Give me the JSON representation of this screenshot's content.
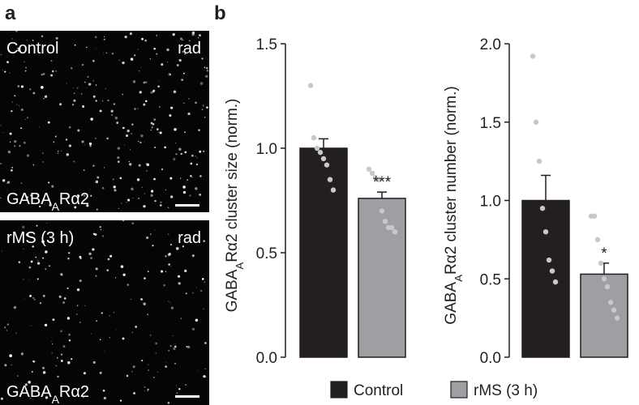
{
  "panel_a": {
    "label": "a",
    "images": [
      {
        "condition": "Control",
        "region": "rad",
        "stain": [
          "GABA",
          "A",
          "Rα2"
        ]
      },
      {
        "condition": "rMS (3 h)",
        "region": "rad",
        "stain": [
          "GABA",
          "A",
          "Rα2"
        ]
      }
    ]
  },
  "panel_b": {
    "label": "b"
  },
  "legend": [
    {
      "name": "Control",
      "color": "#231f20"
    },
    {
      "name": "rMS (3 h)",
      "color": "#9d9fa2"
    }
  ],
  "chart_data": [
    {
      "type": "bar",
      "ylabel": [
        "GABA",
        "A",
        "Rα2 cluster size (norm.)"
      ],
      "values": [
        1.0,
        0.76
      ],
      "errors": [
        0.045,
        0.03
      ],
      "annotations": [
        null,
        "***"
      ],
      "points": [
        [
          1.3,
          1.05,
          1.0,
          0.98,
          0.95,
          0.92,
          0.85,
          0.8
        ],
        [
          0.9,
          0.88,
          0.86,
          0.85,
          0.7,
          0.65,
          0.62,
          0.62,
          0.6
        ]
      ],
      "point_color": "#c8c8c8",
      "ylim": [
        0,
        1.5
      ],
      "yticks": [
        {
          "value": 0,
          "label": "0.0"
        },
        {
          "value": 0.5,
          "label": "0.5"
        },
        {
          "value": 1,
          "label": "1.0"
        },
        {
          "value": 1.5,
          "label": "1.5"
        }
      ]
    },
    {
      "type": "bar",
      "ylabel": [
        "GABA",
        "A",
        "Rα2 cluster number (norm.)"
      ],
      "values": [
        1.0,
        0.53
      ],
      "errors": [
        0.16,
        0.07
      ],
      "annotations": [
        null,
        "*"
      ],
      "points": [
        [
          1.92,
          1.5,
          1.25,
          0.95,
          0.8,
          0.62,
          0.55,
          0.48
        ],
        [
          0.9,
          0.9,
          0.75,
          0.6,
          0.5,
          0.45,
          0.35,
          0.3,
          0.25
        ]
      ],
      "point_color": "#c8c8c8",
      "ylim": [
        0,
        2
      ],
      "yticks": [
        {
          "value": 0,
          "label": "0.0"
        },
        {
          "value": 0.5,
          "label": "0.5"
        },
        {
          "value": 1,
          "label": "1.0"
        },
        {
          "value": 1.5,
          "label": "1.5"
        },
        {
          "value": 2,
          "label": "2.0"
        }
      ]
    }
  ]
}
